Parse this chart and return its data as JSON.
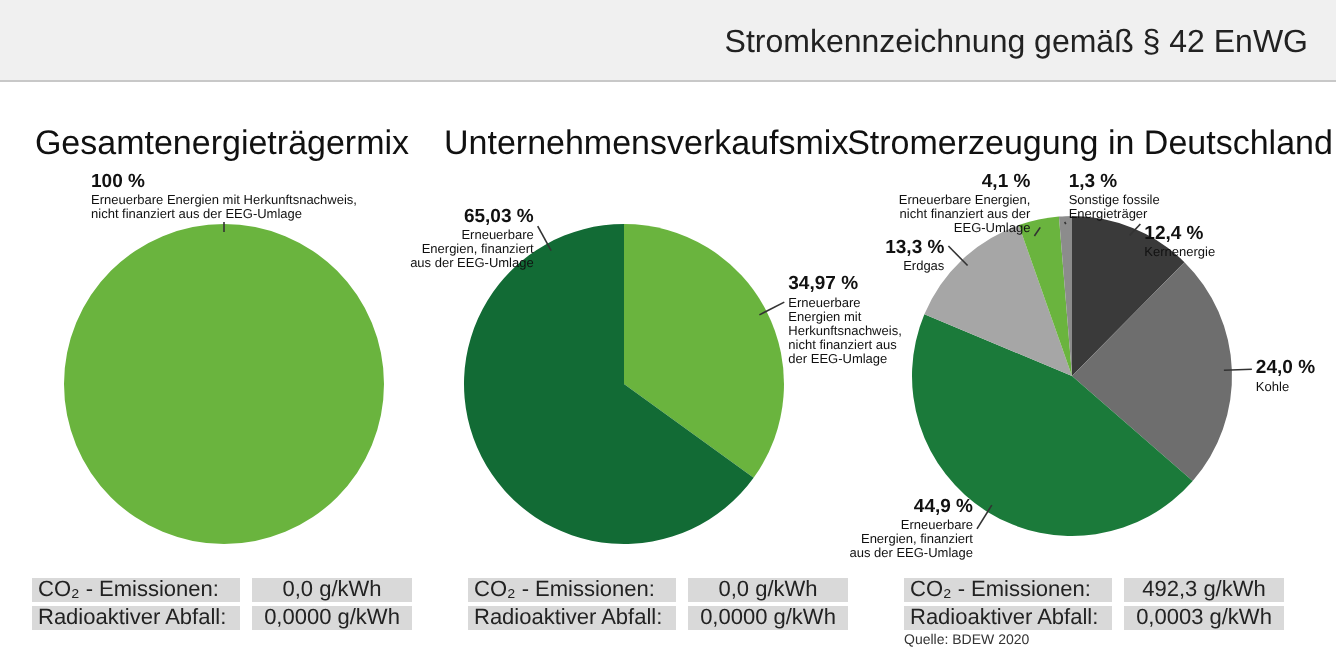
{
  "chart_data": [
    {
      "type": "pie",
      "title": "Gesamtenergieträgermix",
      "legend": false,
      "categories": [
        "Erneuerbare Energien mit Herkunftsnachweis, nicht finanziert aus der EEG-Umlage"
      ],
      "values": [
        100
      ],
      "colors": [
        "#6ab43e"
      ],
      "value_labels": [
        "100 %"
      ],
      "annotations": [
        "CO₂ - Emissionen:",
        "0,0 g/kWh",
        "Radioaktiver Abfall:",
        "0,0000 g/kWh",
        "Stromkennzeichnung gemäß § 42 EnWG"
      ]
    },
    {
      "type": "pie",
      "title": "Unternehmensverkaufsmix",
      "legend": false,
      "categories": [
        "Erneuerbare Energien mit Herkunftsnachweis, nicht finanziert aus der EEG-Umlage",
        "Erneuerbare Energien, finanziert aus der EEG-Umlage"
      ],
      "values": [
        34.97,
        65.03
      ],
      "colors": [
        "#6ab43e",
        "#126b35"
      ],
      "value_labels": [
        "34,97 %",
        "65,03 %"
      ],
      "annotations": [
        "CO₂ - Emissionen:",
        "0,0 g/kWh",
        "Radioaktiver Abfall:",
        "0,0000 g/kWh"
      ]
    },
    {
      "type": "pie",
      "title": "Stromerzeugung in Deutschland",
      "legend": false,
      "categories": [
        "Kernenergie",
        "Kohle",
        "Erneuerbare Energien, finanziert aus der EEG-Umlage",
        "Erdgas",
        "Erneuerbare Energien, nicht finanziert aus der EEG-Umlage",
        "Sonstige fossile Energieträger"
      ],
      "values": [
        12.4,
        24.0,
        44.9,
        13.3,
        4.1,
        1.3
      ],
      "colors": [
        "#3a3a3a",
        "#6e6e6e",
        "#1b7a3a",
        "#a6a6a6",
        "#6ab43e",
        "#8c8c8c"
      ],
      "value_labels": [
        "12,4 %",
        "24,0 %",
        "44,9 %",
        "13,3 %",
        "4,1 %",
        "1,3 %"
      ],
      "annotations": [
        "CO₂ - Emissionen:",
        "492,3 g/kWh",
        "Radioaktiver Abfall:",
        "0,0003 g/kWh",
        "Quelle: BDEW 2020"
      ]
    }
  ]
}
